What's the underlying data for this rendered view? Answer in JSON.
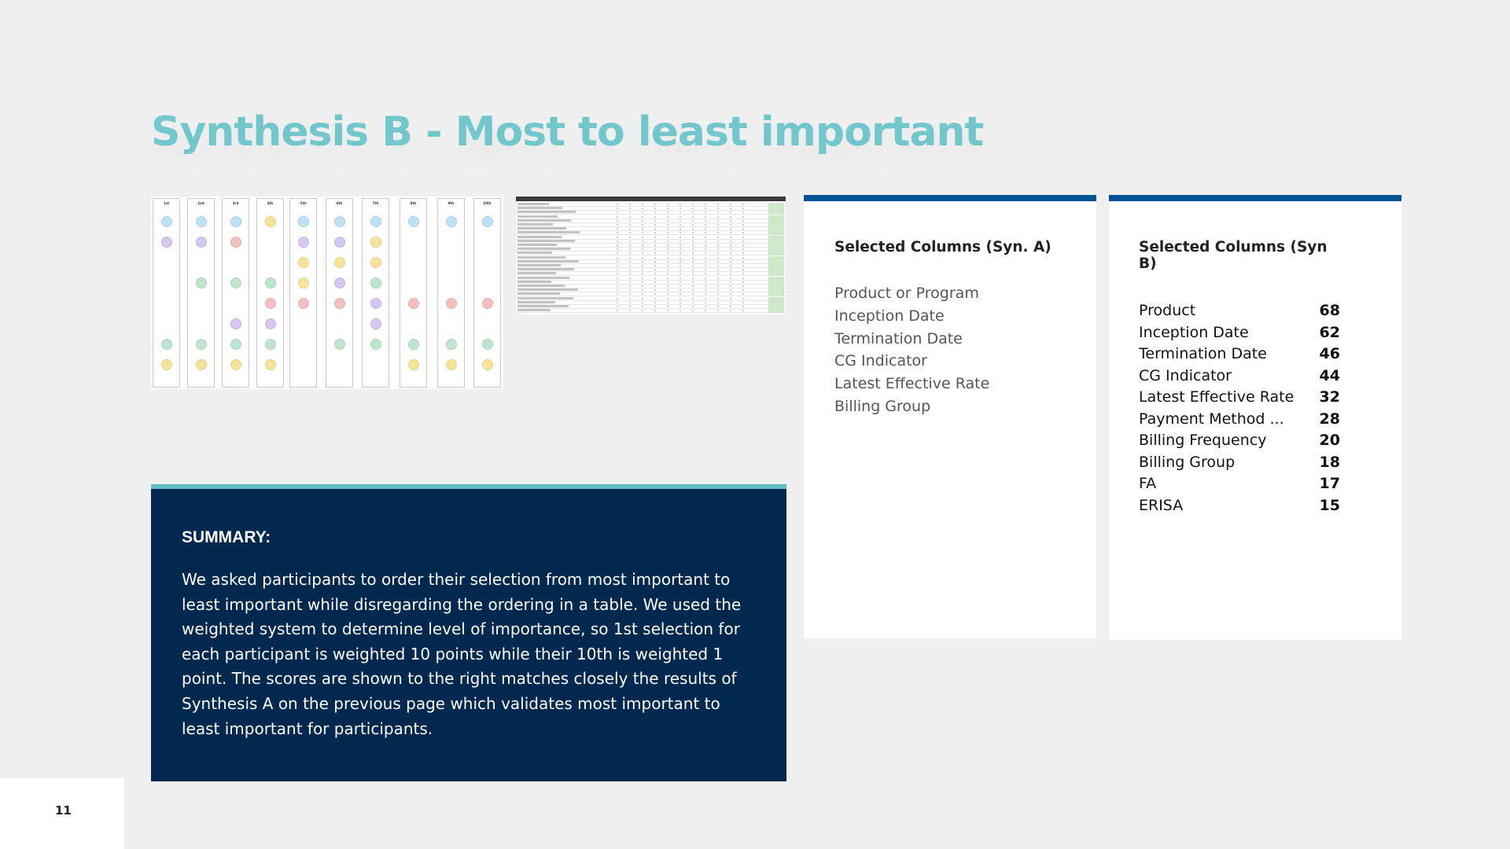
{
  "slide": {
    "title": "Synthesis B - Most to least important",
    "page_number": "11"
  },
  "summary": {
    "heading": "SUMMARY:",
    "body": "We asked participants to order their selection from most important to least important while disregarding the ordering in a table. We used the weighted system to determine level of importance, so 1st selection for each participant is weighted 10 points while their 10th is weighted 1 point. The scores are shown to the right matches closely the results of Synthesis A on the previous page which validates most important to least important for participants."
  },
  "card_a": {
    "heading": "Selected Columns (Syn. A)",
    "items": [
      "Product or Program",
      "Inception Date",
      "Termination Date",
      "CG Indicator",
      "Latest Effective Rate",
      "Billing Group"
    ]
  },
  "card_b": {
    "heading": "Selected Columns (Syn B)",
    "rows": [
      {
        "name": "Product",
        "score": "68"
      },
      {
        "name": "Inception Date",
        "score": "62"
      },
      {
        "name": "Termination Date",
        "score": "46"
      },
      {
        "name": "CG Indicator",
        "score": "44"
      },
      {
        "name": "Latest Effective Rate",
        "score": "32"
      },
      {
        "name": "Payment Method ...",
        "score": "28"
      },
      {
        "name": "Billing Frequency",
        "score": "20"
      },
      {
        "name": "Billing Group",
        "score": "18"
      },
      {
        "name": "FA",
        "score": "17"
      },
      {
        "name": "ERISA",
        "score": "15"
      }
    ]
  },
  "board_thumbnail": {
    "columns": [
      "1st",
      "2nd",
      "3rd",
      "4th",
      "5th",
      "6th",
      "7th",
      "8th",
      "9th",
      "10th"
    ]
  },
  "colors": {
    "title": "#72c7cd",
    "summary_bg": "#01284f",
    "summary_accent": "#5fbcc4",
    "card_accent": "#015493"
  }
}
